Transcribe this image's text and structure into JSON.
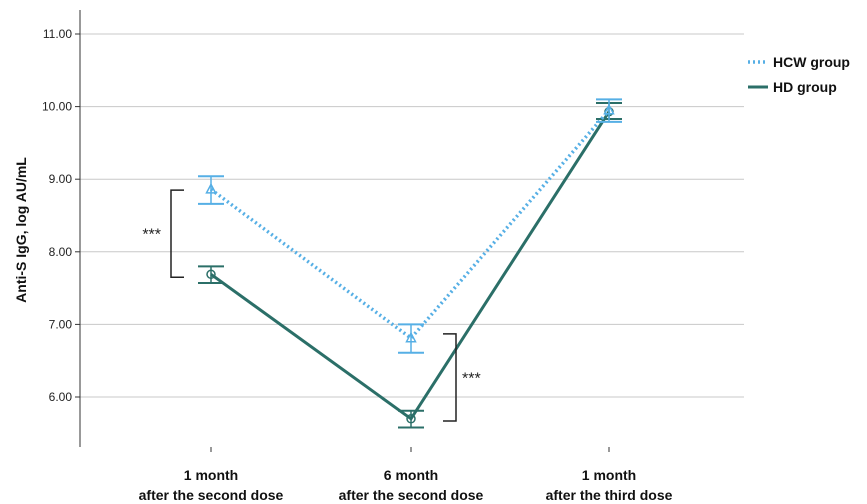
{
  "chart_data": {
    "type": "line",
    "categories": [
      "1 month\nafter the second dose",
      "6 month\nafter the second dose",
      "1 month\nafter the third dose"
    ],
    "category_lines": [
      [
        "1 month",
        "after the second dose"
      ],
      [
        "6 month",
        "after the second dose"
      ],
      [
        "1 month",
        "after the third dose"
      ]
    ],
    "ylabel": "Anti-S IgG, log AU/mL",
    "ylim": [
      5.6,
      11.35
    ],
    "yticks": [
      "6.00",
      "7.00",
      "8.00",
      "9.00",
      "10.00",
      "11.00"
    ],
    "ytick_values": [
      6,
      7,
      8,
      9,
      10,
      11
    ],
    "grid": true,
    "legend_position": "top-right",
    "series": [
      {
        "name": "HCW group",
        "color": "#56afe5",
        "line_style": "dotted",
        "marker": "triangle",
        "values": [
          8.86,
          6.81,
          9.95
        ],
        "error_low": [
          8.66,
          6.61,
          9.79
        ],
        "error_high": [
          9.04,
          7.0,
          10.1
        ]
      },
      {
        "name": "HD group",
        "color": "#2b6f68",
        "line_style": "solid",
        "marker": "circle",
        "values": [
          7.69,
          5.7,
          9.93
        ],
        "error_low": [
          7.57,
          5.58,
          9.83
        ],
        "error_high": [
          7.8,
          5.81,
          10.05
        ]
      }
    ],
    "annotations": [
      {
        "text": "***",
        "category_index": 0,
        "y_range": [
          7.65,
          8.85
        ],
        "side": "left"
      },
      {
        "text": "***",
        "category_index": 1,
        "y_range": [
          5.67,
          6.87
        ],
        "side": "right"
      }
    ]
  }
}
